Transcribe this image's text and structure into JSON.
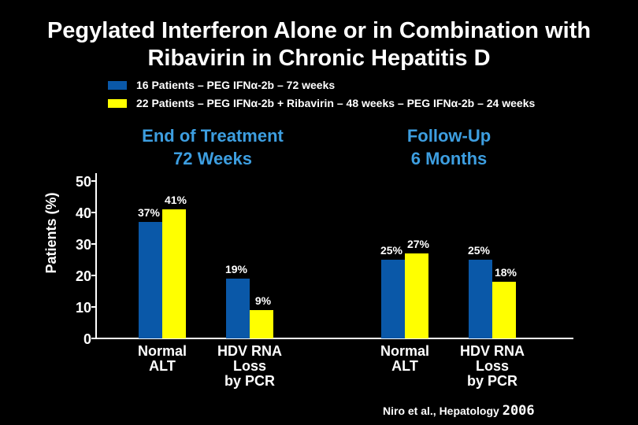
{
  "slide": {
    "title_line1": "Pegylated Interferon Alone or in Combination with",
    "title_line2": "Ribavirin in Chronic Hepatitis D",
    "citation_text": "Niro et al., Hepatology",
    "citation_year": "2006"
  },
  "colors": {
    "background": "#000000",
    "series1": "#0a58a8",
    "series2": "#ffff00",
    "group_heading": "#3d9ee0",
    "axis": "#ffffff"
  },
  "chart_data": {
    "type": "bar",
    "ylabel": "Patients (%)",
    "ylim": [
      0,
      50
    ],
    "yticks": [
      0,
      10,
      20,
      30,
      40,
      50
    ],
    "series": [
      {
        "name": "16 Patients – PEG IFNα-2b – 72 weeks",
        "color": "#0a58a8",
        "values": [
          37,
          19,
          25,
          25
        ]
      },
      {
        "name": "22 Patients – PEG IFNα-2b + Ribavirin – 48 weeks – PEG IFNα-2b – 24 weeks",
        "color": "#ffff00",
        "values": [
          41,
          9,
          27,
          18
        ]
      }
    ],
    "data_labels": [
      [
        "37%",
        "19%",
        "25%",
        "25%"
      ],
      [
        "41%",
        "9%",
        "27%",
        "18%"
      ]
    ],
    "categories": [
      [
        "Normal",
        "ALT"
      ],
      [
        "HDV RNA",
        "Loss",
        "by PCR"
      ],
      [
        "Normal",
        "ALT"
      ],
      [
        "HDV RNA",
        "Loss",
        "by PCR"
      ]
    ],
    "groups": [
      {
        "heading_line1": "End of Treatment",
        "heading_line2": "72 Weeks"
      },
      {
        "heading_line1": "Follow-Up",
        "heading_line2": "6 Months"
      }
    ]
  }
}
